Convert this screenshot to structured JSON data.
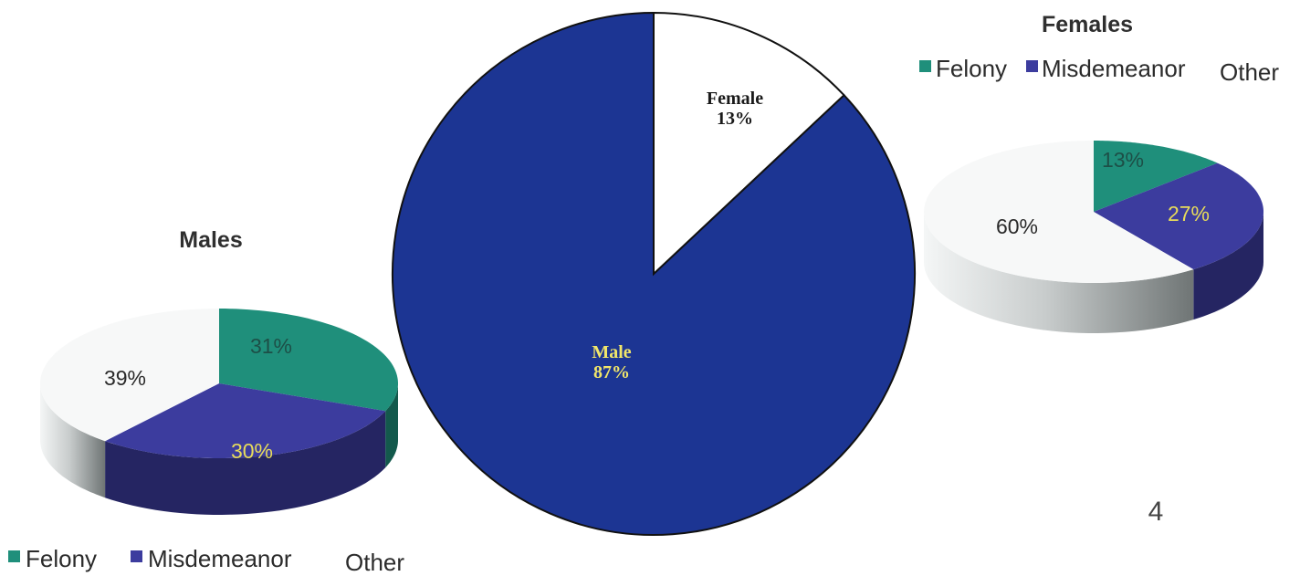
{
  "chart_data": [
    {
      "type": "pie",
      "title": "",
      "slices": [
        {
          "label": "Male",
          "value": 87,
          "color": "#1c3593",
          "label_color": "#f1e66a"
        },
        {
          "label": "Female",
          "value": 13,
          "color": "#ffffff",
          "label_color": "#1a1a1a"
        }
      ]
    },
    {
      "type": "pie",
      "title": "Males",
      "legend_position": "bottom-left",
      "slices": [
        {
          "label": "Felony",
          "value": 31,
          "color": "#1f8f7b"
        },
        {
          "label": "Misdemeanor",
          "value": 30,
          "color": "#3c3c9e"
        },
        {
          "label": "Other",
          "value": 39,
          "color": "#ffffff"
        }
      ]
    },
    {
      "type": "pie",
      "title": "Females",
      "legend_position": "top-right",
      "slices": [
        {
          "label": "Felony",
          "value": 13,
          "color": "#1f8f7b"
        },
        {
          "label": "Misdemeanor",
          "value": 27,
          "color": "#3c3c9e"
        },
        {
          "label": "Other",
          "value": 60,
          "color": "#ffffff"
        }
      ]
    }
  ],
  "page_number": "4"
}
